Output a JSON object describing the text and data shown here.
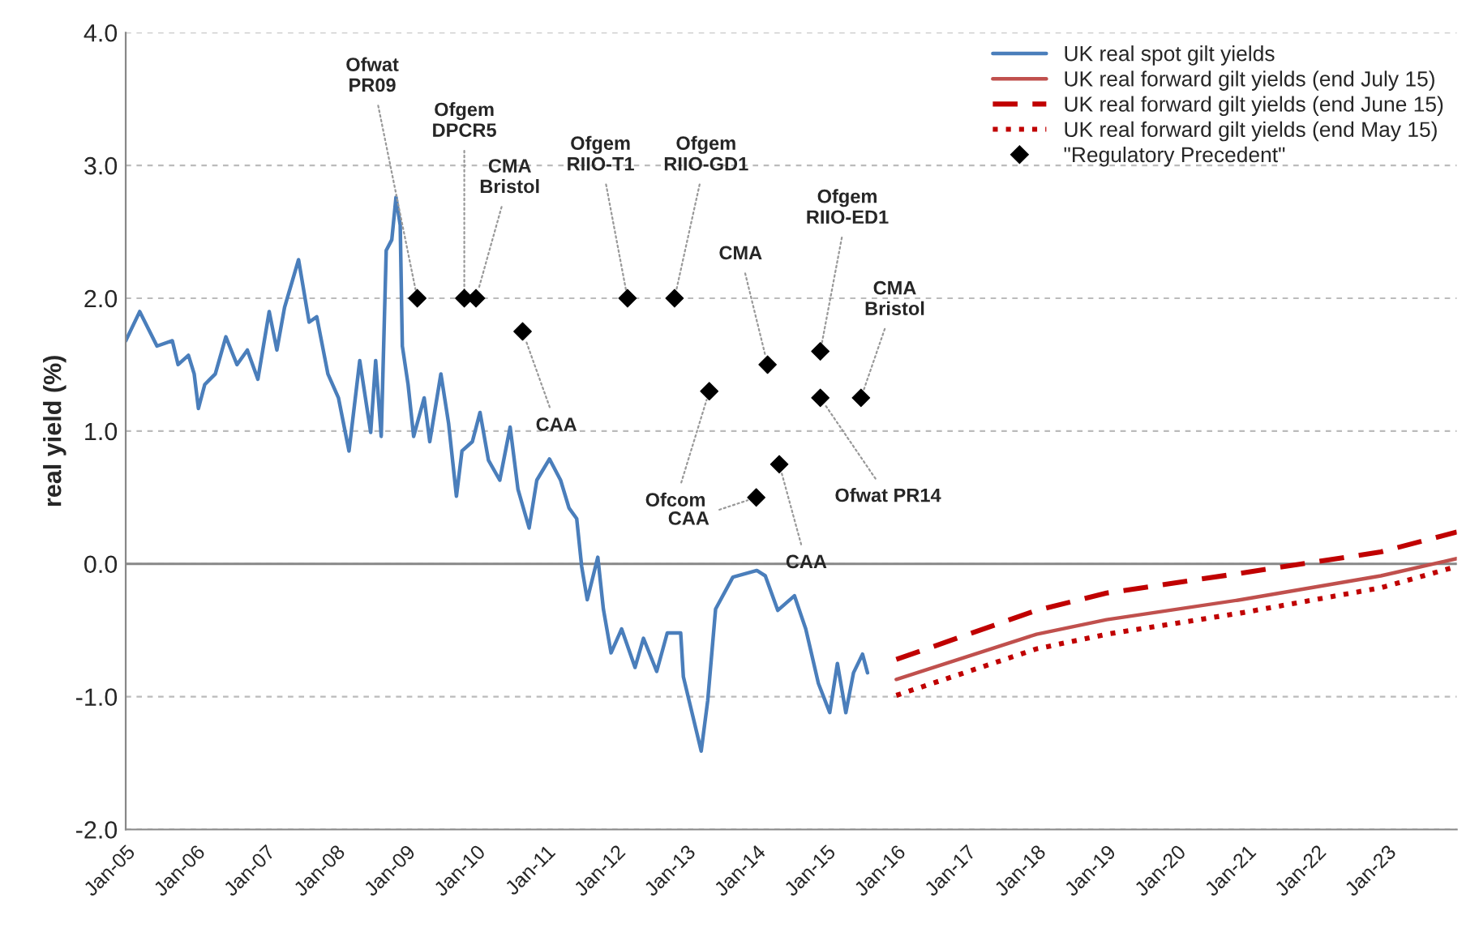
{
  "chart_data": {
    "type": "line",
    "ylabel": "real yield (%)",
    "ylim": [
      -2,
      4
    ],
    "yticks": [
      {
        "value": -2,
        "label": "-2.0"
      },
      {
        "value": -1,
        "label": "-1.0"
      },
      {
        "value": 0,
        "label": "0.0"
      },
      {
        "value": 1,
        "label": "1.0"
      },
      {
        "value": 2,
        "label": "2.0"
      },
      {
        "value": 3,
        "label": "3.0"
      },
      {
        "value": 4,
        "label": "4.0"
      }
    ],
    "xlim": [
      "2005-01-01",
      "2024-01-01"
    ],
    "xticks": [
      {
        "value": "2005-01-01",
        "label": "Jan-05"
      },
      {
        "value": "2006-01-01",
        "label": "Jan-06"
      },
      {
        "value": "2007-01-01",
        "label": "Jan-07"
      },
      {
        "value": "2008-01-01",
        "label": "Jan-08"
      },
      {
        "value": "2009-01-01",
        "label": "Jan-09"
      },
      {
        "value": "2010-01-01",
        "label": "Jan-10"
      },
      {
        "value": "2011-01-01",
        "label": "Jan-11"
      },
      {
        "value": "2012-01-01",
        "label": "Jan-12"
      },
      {
        "value": "2013-01-01",
        "label": "Jan-13"
      },
      {
        "value": "2014-01-01",
        "label": "Jan-14"
      },
      {
        "value": "2015-01-01",
        "label": "Jan-15"
      },
      {
        "value": "2016-01-01",
        "label": "Jan-16"
      },
      {
        "value": "2017-01-01",
        "label": "Jan-17"
      },
      {
        "value": "2018-01-01",
        "label": "Jan-18"
      },
      {
        "value": "2019-01-01",
        "label": "Jan-19"
      },
      {
        "value": "2020-01-01",
        "label": "Jan-20"
      },
      {
        "value": "2021-01-01",
        "label": "Jan-21"
      },
      {
        "value": "2022-01-01",
        "label": "Jan-22"
      },
      {
        "value": "2023-01-01",
        "label": "Jan-23"
      }
    ],
    "grid": "y",
    "legend": "top right",
    "ref_lines": [
      {
        "axis": "y",
        "value": 0,
        "color": "#888888"
      }
    ],
    "series": [
      {
        "name": "UK real spot gilt yields",
        "color": "#4a7ebb",
        "line_style": "solid",
        "x": [
          "2005-01-01",
          "2005-03-15",
          "2005-06-13",
          "2005-09-01",
          "2005-10-01",
          "2005-11-24",
          "2005-12-24",
          "2006-01-15",
          "2006-02-17",
          "2006-04-13",
          "2006-06-07",
          "2006-08-04",
          "2006-09-27",
          "2006-11-21",
          "2007-01-19",
          "2007-02-28",
          "2007-04-09",
          "2007-06-21",
          "2007-08-15",
          "2007-09-24",
          "2007-11-21",
          "2008-01-15",
          "2008-03-10",
          "2008-05-05",
          "2008-07-01",
          "2008-07-27",
          "2008-08-25",
          "2008-09-20",
          "2008-10-19",
          "2008-11-10",
          "2008-12-02",
          "2008-12-13",
          "2009-01-12",
          "2009-02-10",
          "2009-04-06",
          "2009-05-05",
          "2009-07-02",
          "2009-08-11",
          "2009-09-21",
          "2009-10-20",
          "2009-12-13",
          "2010-01-22",
          "2010-03-07",
          "2010-05-05",
          "2010-06-28",
          "2010-08-08",
          "2010-10-05",
          "2010-11-14",
          "2011-01-19",
          "2011-03-18",
          "2011-05-01",
          "2011-06-10",
          "2011-07-06",
          "2011-08-04",
          "2011-09-28",
          "2011-10-27",
          "2011-12-06",
          "2012-01-30",
          "2012-04-09",
          "2012-05-23",
          "2012-07-31",
          "2012-09-24",
          "2012-12-03",
          "2012-12-17",
          "2013-03-20",
          "2013-04-23",
          "2013-06-03",
          "2013-09-01",
          "2014-01-04",
          "2014-02-17",
          "2014-04-23",
          "2014-07-19",
          "2014-09-16",
          "2014-11-21",
          "2015-01-19",
          "2015-02-28",
          "2015-04-13",
          "2015-05-23",
          "2015-07-09",
          "2015-08-04"
        ],
        "values": [
          1.68,
          1.9,
          1.64,
          1.68,
          1.5,
          1.57,
          1.43,
          1.17,
          1.35,
          1.43,
          1.71,
          1.5,
          1.61,
          1.39,
          1.9,
          1.61,
          1.93,
          2.29,
          1.82,
          1.86,
          1.43,
          1.25,
          0.85,
          1.53,
          0.99,
          1.53,
          0.96,
          2.36,
          2.44,
          2.76,
          2.55,
          1.64,
          1.35,
          0.96,
          1.25,
          0.92,
          1.43,
          1.06,
          0.51,
          0.85,
          0.92,
          1.14,
          0.78,
          0.63,
          1.03,
          0.56,
          0.27,
          0.63,
          0.79,
          0.63,
          0.42,
          0.34,
          -0.02,
          -0.27,
          0.05,
          -0.34,
          -0.67,
          -0.49,
          -0.78,
          -0.56,
          -0.81,
          -0.52,
          -0.52,
          -0.85,
          -1.41,
          -1.03,
          -0.34,
          -0.1,
          -0.05,
          -0.09,
          -0.35,
          -0.24,
          -0.49,
          -0.9,
          -1.12,
          -0.75,
          -1.12,
          -0.82,
          -0.68,
          -0.82
        ]
      },
      {
        "name": "UK real forward gilt yields (end July 15)",
        "color": "#c0504d",
        "line_style": "solid",
        "x": [
          "2016-01-01",
          "2018-01-01",
          "2019-01-01",
          "2020-12-01",
          "2022-12-01",
          "2024-01-01"
        ],
        "values": [
          -0.87,
          -0.53,
          -0.42,
          -0.27,
          -0.09,
          0.04
        ]
      },
      {
        "name": "UK real forward gilt yields (end June 15)",
        "color": "#c00000",
        "line_style": "dashed",
        "x": [
          "2016-01-01",
          "2018-01-01",
          "2019-01-01",
          "2020-12-01",
          "2022-12-01",
          "2024-01-01"
        ],
        "values": [
          -0.72,
          -0.35,
          -0.22,
          -0.07,
          0.09,
          0.24
        ]
      },
      {
        "name": "UK real forward gilt yields (end May 15)",
        "color": "#c00000",
        "line_style": "dotted",
        "x": [
          "2016-01-01",
          "2018-01-01",
          "2019-01-01",
          "2020-12-01",
          "2022-12-01",
          "2024-01-01"
        ],
        "values": [
          -0.99,
          -0.64,
          -0.53,
          -0.37,
          -0.18,
          -0.02
        ]
      },
      {
        "name": "\"Regulatory Precedent\"",
        "type": "scatter",
        "marker": "diamond",
        "color": "#000000",
        "x": [
          "2009-03-01",
          "2009-11-01",
          "2010-01-01",
          "2010-09-01",
          "2012-03-01",
          "2012-11-01",
          "2013-05-01",
          "2014-03-01",
          "2014-12-01",
          "2014-12-01",
          "2015-07-01",
          "2014-05-01",
          "2014-01-01"
        ],
        "values": [
          2.0,
          2.0,
          2.0,
          1.75,
          2.0,
          2.0,
          1.3,
          1.5,
          1.6,
          1.25,
          1.25,
          0.75,
          0.5
        ]
      }
    ],
    "annotations": [
      {
        "text": "Ofwat\nPR09",
        "x": "2009-03-01",
        "y": 2.0
      },
      {
        "text": "Ofgem\nDPCR5",
        "x": "2009-11-01",
        "y": 2.0
      },
      {
        "text": "CMA\nBristol",
        "x": "2010-01-01",
        "y": 2.0
      },
      {
        "text": "CAA",
        "x": "2010-09-01",
        "y": 1.75
      },
      {
        "text": "Ofgem\nRIIO-T1",
        "x": "2012-03-01",
        "y": 2.0
      },
      {
        "text": "Ofgem\nRIIO-GD1",
        "x": "2012-11-01",
        "y": 2.0
      },
      {
        "text": "Ofcom",
        "x": "2013-05-01",
        "y": 1.3
      },
      {
        "text": "CMA",
        "x": "2014-03-01",
        "y": 1.5
      },
      {
        "text": "Ofgem\nRIIO-ED1",
        "x": "2014-12-01",
        "y": 1.6
      },
      {
        "text": "Ofwat PR14",
        "x": "2014-12-01",
        "y": 1.25
      },
      {
        "text": "CMA\nBristol",
        "x": "2015-07-01",
        "y": 1.25
      },
      {
        "text": "CAA",
        "x": "2014-05-01",
        "y": 0.75
      },
      {
        "text": "CAA",
        "x": "2014-01-01",
        "y": 0.5
      }
    ]
  }
}
